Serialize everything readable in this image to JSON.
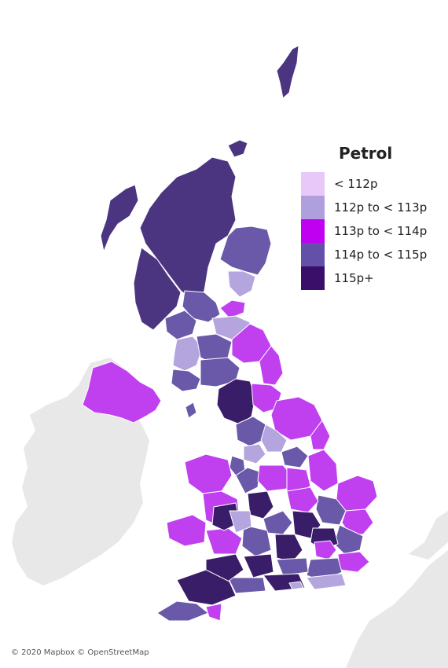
{
  "legend": {
    "title": "Petrol",
    "items": [
      {
        "label": "< 112p",
        "color": "#e8c8f8"
      },
      {
        "label": "112p to < 113p",
        "color": "#b09fdd"
      },
      {
        "label": "113p to < 114p",
        "color": "#c000f0"
      },
      {
        "label": "114p to < 115p",
        "color": "#6350a8"
      },
      {
        "label": "115p+",
        "color": "#3a0f6a"
      }
    ]
  },
  "attribution": "© 2020 Mapbox © OpenStreetMap",
  "colors": {
    "land_other": "#e8e8e8",
    "water": "#ffffff",
    "border": "#ffffff",
    "band_scotland_north": "#4b3580",
    "band_magenta": "#c040f0",
    "band_purple": "#6a58a8",
    "band_light": "#b4a5de",
    "band_dark": "#3a1d68"
  }
}
